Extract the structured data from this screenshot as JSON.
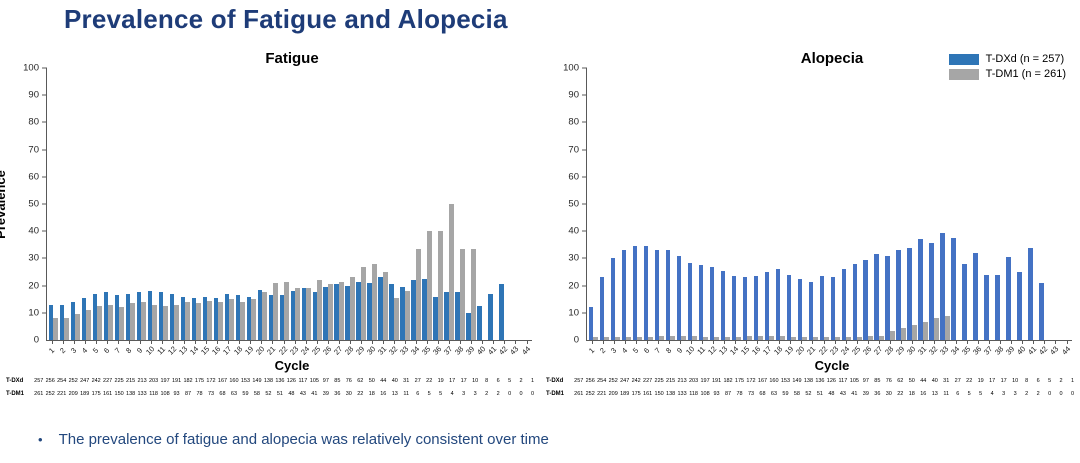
{
  "title": "Prevalence of Fatigue and Alopecia",
  "bullet_marker": "•",
  "bullet": "The prevalence of fatigue and alopecia was relatively consistent over time",
  "legend": [
    {
      "label": "T-DXd (n = 257)",
      "color": "#2E75B6"
    },
    {
      "label": "T-DM1 (n = 261)",
      "color": "#A6A6A6"
    }
  ],
  "axis": {
    "y_ticks": [
      0,
      10,
      20,
      30,
      40,
      50,
      60,
      70,
      80,
      90,
      100
    ],
    "y_max": 100
  },
  "chart_data": [
    {
      "type": "bar",
      "title": "Fatigue",
      "xlabel": "Cycle",
      "ylabel": "Prevalence",
      "ylim": [
        0,
        100
      ],
      "categories": [
        1,
        2,
        3,
        4,
        5,
        6,
        7,
        8,
        9,
        10,
        11,
        12,
        13,
        14,
        15,
        16,
        17,
        18,
        19,
        20,
        21,
        22,
        23,
        24,
        25,
        26,
        27,
        28,
        29,
        30,
        31,
        32,
        33,
        34,
        35,
        36,
        37,
        38,
        39,
        40,
        41,
        42,
        43,
        44
      ],
      "series": [
        {
          "name": "T-DXd",
          "color": "#2E75B6",
          "values": [
            13,
            13,
            14,
            15.5,
            17,
            17.5,
            16.5,
            17,
            17.5,
            18,
            17.5,
            17,
            16,
            15.5,
            16,
            15.5,
            17,
            16.5,
            16,
            18.5,
            16.5,
            16.5,
            18,
            19,
            17.5,
            19.5,
            20.5,
            20,
            21.5,
            21,
            23,
            20.5,
            19.5,
            22,
            22.5,
            16,
            17.5,
            17.5,
            10,
            12.5,
            17,
            20.5,
            0,
            0
          ]
        },
        {
          "name": "T-DM1",
          "color": "#A6A6A6",
          "values": [
            8,
            8,
            9.5,
            11,
            12.5,
            13,
            12,
            13.5,
            14,
            13,
            12.5,
            13,
            14,
            13.5,
            14.5,
            14,
            15,
            14,
            15,
            17.5,
            21,
            21.5,
            19,
            19,
            22,
            20.5,
            21.5,
            23,
            27,
            28,
            25,
            15.5,
            18,
            33.5,
            40,
            40,
            50,
            33.5,
            33.5,
            0,
            0,
            0,
            0,
            0
          ]
        }
      ],
      "at_risk": [
        {
          "label": "T-DXd",
          "values": [
            257,
            256,
            254,
            252,
            247,
            242,
            227,
            225,
            215,
            213,
            203,
            197,
            191,
            182,
            175,
            172,
            167,
            160,
            153,
            149,
            138,
            136,
            126,
            117,
            105,
            97,
            85,
            76,
            62,
            50,
            44,
            40,
            31,
            27,
            22,
            19,
            17,
            17,
            10,
            8,
            6,
            5,
            2,
            1
          ]
        },
        {
          "label": "T-DM1",
          "values": [
            261,
            252,
            221,
            209,
            189,
            175,
            161,
            150,
            138,
            133,
            118,
            108,
            93,
            87,
            78,
            73,
            68,
            63,
            59,
            58,
            52,
            51,
            48,
            43,
            41,
            39,
            36,
            30,
            22,
            18,
            16,
            13,
            11,
            6,
            5,
            5,
            4,
            3,
            3,
            2,
            2,
            0,
            0,
            0
          ]
        }
      ]
    },
    {
      "type": "bar",
      "title": "Alopecia",
      "xlabel": "Cycle",
      "ylabel": "",
      "ylim": [
        0,
        100
      ],
      "categories": [
        1,
        2,
        3,
        4,
        5,
        6,
        7,
        8,
        9,
        10,
        11,
        12,
        13,
        14,
        15,
        16,
        17,
        18,
        19,
        20,
        21,
        22,
        23,
        24,
        25,
        26,
        27,
        28,
        29,
        30,
        31,
        32,
        33,
        34,
        35,
        36,
        37,
        38,
        39,
        40,
        41,
        42,
        43,
        44
      ],
      "series": [
        {
          "name": "T-DXd",
          "color": "#4472C4",
          "values": [
            12,
            23,
            30,
            33,
            34.5,
            34.5,
            33,
            33,
            31,
            28.5,
            27.5,
            27,
            25.5,
            23.5,
            23,
            23.5,
            25,
            26,
            24,
            22.5,
            21.5,
            23.5,
            23,
            26,
            28,
            29.5,
            31.5,
            31,
            33,
            34,
            37,
            35.5,
            39.5,
            37.5,
            28,
            32,
            24,
            24,
            30.5,
            25,
            34,
            21,
            0,
            0
          ]
        },
        {
          "name": "T-DM1",
          "color": "#A6A6A6",
          "values": [
            1,
            1,
            1,
            1,
            1,
            1,
            1.5,
            1.5,
            1.5,
            1.5,
            1,
            1,
            1,
            1,
            1.5,
            1.5,
            1.5,
            1.5,
            1,
            1,
            1,
            1,
            1,
            1,
            1,
            1.5,
            1.5,
            3.5,
            4.5,
            5.5,
            6.5,
            8,
            9,
            0,
            0,
            0,
            0,
            0,
            0,
            0,
            0,
            0,
            0,
            0
          ]
        }
      ],
      "at_risk": [
        {
          "label": "T-DXd",
          "values": [
            257,
            256,
            254,
            252,
            247,
            242,
            227,
            225,
            215,
            213,
            203,
            197,
            191,
            182,
            175,
            172,
            167,
            160,
            153,
            149,
            138,
            136,
            126,
            117,
            105,
            97,
            85,
            76,
            62,
            50,
            44,
            40,
            31,
            27,
            22,
            19,
            17,
            17,
            10,
            8,
            6,
            5,
            2,
            1
          ]
        },
        {
          "label": "T-DM1",
          "values": [
            261,
            252,
            221,
            209,
            189,
            175,
            161,
            150,
            138,
            133,
            118,
            108,
            93,
            87,
            78,
            73,
            68,
            63,
            59,
            58,
            52,
            51,
            48,
            43,
            41,
            39,
            36,
            30,
            22,
            18,
            16,
            13,
            11,
            6,
            5,
            5,
            4,
            3,
            3,
            2,
            2,
            0,
            0,
            0
          ]
        }
      ]
    }
  ]
}
